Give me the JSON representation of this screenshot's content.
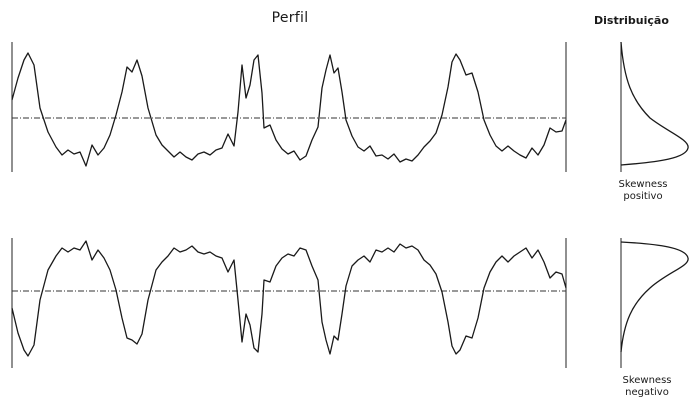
{
  "title_profile": "Perfil",
  "title_distribution": "Distribuição",
  "captions": {
    "positive": [
      "Skewness",
      "positivo"
    ],
    "negative": [
      "Skewness",
      "negativo"
    ]
  }
}
